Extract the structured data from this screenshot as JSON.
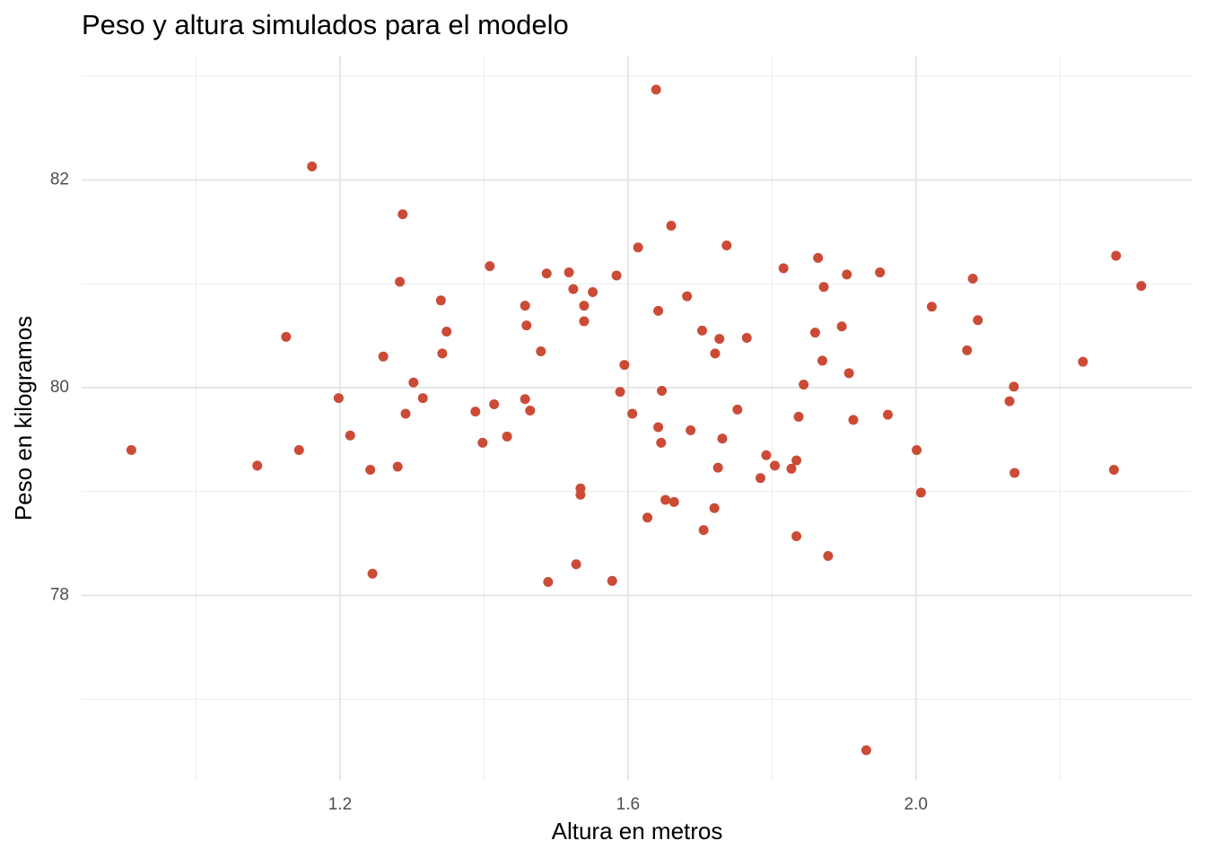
{
  "chart_data": {
    "type": "scatter",
    "title": "Peso y altura simulados para el modelo",
    "x_label": "Altura en metros",
    "y_label": "Peso en kilogramos",
    "color": "#cb4b37",
    "grid": true,
    "xlim": [
      0.841,
      2.383
    ],
    "ylim": [
      76.216,
      83.197
    ],
    "xticks": [
      1.2,
      1.6,
      {
        "value": 2,
        "label": "2.0"
      }
    ],
    "yticks": [
      78,
      80,
      82
    ],
    "xminor": [
      1,
      1.4,
      1.8,
      2.2
    ],
    "yminor": [
      77,
      79,
      81,
      83
    ],
    "x": [
      0.91,
      1.085,
      1.125,
      1.143,
      1.161,
      1.198,
      1.214,
      1.242,
      1.245,
      1.26,
      1.28,
      1.283,
      1.287,
      1.291,
      1.302,
      1.315,
      1.34,
      1.342,
      1.348,
      1.388,
      1.398,
      1.408,
      1.414,
      1.432,
      1.457,
      1.457,
      1.459,
      1.464,
      1.479,
      1.487,
      1.489,
      1.518,
      1.524,
      1.528,
      1.534,
      1.534,
      1.539,
      1.539,
      1.551,
      1.578,
      1.584,
      1.589,
      1.595,
      1.606,
      1.614,
      1.627,
      1.639,
      1.642,
      1.642,
      1.646,
      1.647,
      1.652,
      1.66,
      1.664,
      1.682,
      1.687,
      1.703,
      1.705,
      1.72,
      1.721,
      1.725,
      1.727,
      1.731,
      1.737,
      1.752,
      1.765,
      1.784,
      1.792,
      1.804,
      1.816,
      1.827,
      1.834,
      1.834,
      1.837,
      1.844,
      1.86,
      1.864,
      1.87,
      1.872,
      1.878,
      1.897,
      1.904,
      1.907,
      1.913,
      1.931,
      1.95,
      1.961,
      2.001,
      2.007,
      2.022,
      2.071,
      2.079,
      2.086,
      2.13,
      2.136,
      2.137,
      2.232,
      2.275,
      2.278,
      2.313
    ],
    "y": [
      79.4,
      79.25,
      80.49,
      79.4,
      82.13,
      79.9,
      79.54,
      79.21,
      78.21,
      80.3,
      79.24,
      81.02,
      81.67,
      79.75,
      80.05,
      79.9,
      80.84,
      80.33,
      80.54,
      79.77,
      79.47,
      81.17,
      79.84,
      79.53,
      79.89,
      80.79,
      80.6,
      79.78,
      80.35,
      81.1,
      78.13,
      81.11,
      80.95,
      78.3,
      79.03,
      78.97,
      80.79,
      80.64,
      80.92,
      78.14,
      81.08,
      79.96,
      80.22,
      79.75,
      81.35,
      78.75,
      82.87,
      80.74,
      79.62,
      79.47,
      79.97,
      78.92,
      81.56,
      78.9,
      80.88,
      79.59,
      80.55,
      78.63,
      78.84,
      80.33,
      79.23,
      80.47,
      79.51,
      81.37,
      79.79,
      80.48,
      79.13,
      79.35,
      79.25,
      81.15,
      79.22,
      79.3,
      78.57,
      79.72,
      80.03,
      80.53,
      81.25,
      80.26,
      80.97,
      78.38,
      80.59,
      81.09,
      80.14,
      79.69,
      76.51,
      81.11,
      79.74,
      79.4,
      78.99,
      80.78,
      80.36,
      81.05,
      80.65,
      79.87,
      80.01,
      79.18,
      80.25,
      79.21,
      81.27,
      80.98
    ]
  }
}
